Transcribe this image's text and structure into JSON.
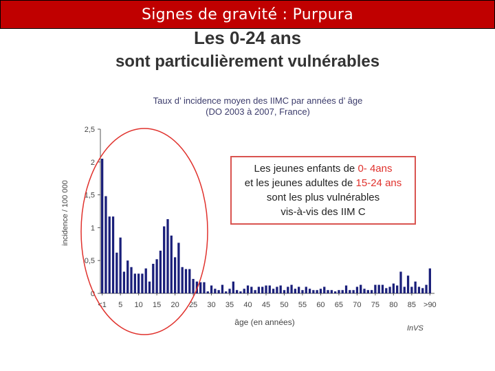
{
  "slide": {
    "title": "Signes de gravité : Purpura",
    "headline_1": "Les 0-24 ans",
    "headline_2": "sont particulièrement vulnérables",
    "chart_title_1": "Taux d’ incidence moyen des IIMC par années d’ âge",
    "chart_title_2": "(DO 2003 à 2007, France)",
    "note": {
      "line1_pre": "Les jeunes enfants de ",
      "line1_red": "0- 4ans",
      "line2_pre": "et les jeunes adultes de ",
      "line2_red": "15-24 ans",
      "line3": "sont les plus vulnérables",
      "line4": "vis-à-vis des IIM C"
    },
    "source": "InVS",
    "colors": {
      "title_bg": "#c00000",
      "bars": "#1a1f7a",
      "highlight": "#e0312c"
    }
  },
  "chart_data": {
    "type": "bar",
    "title": "Taux d’ incidence moyen des IIMC par années d’ âge",
    "subtitle": "(DO 2003 à 2007, France)",
    "xlabel": "âge (en années)",
    "ylabel": "incidence / 100 000",
    "ylim": [
      0,
      2.5
    ],
    "yticks": [
      "0",
      "0,5",
      "1",
      "1,5",
      "2",
      "2,5"
    ],
    "xticks": [
      "<1",
      "5",
      "10",
      "15",
      "20",
      "25",
      "30",
      "35",
      "40",
      "45",
      "50",
      "55",
      "60",
      "65",
      "70",
      "75",
      "80",
      "85",
      ">90"
    ],
    "xtick_positions": [
      0,
      5,
      10,
      15,
      20,
      25,
      30,
      35,
      40,
      45,
      50,
      55,
      60,
      65,
      70,
      75,
      80,
      85,
      90
    ],
    "categories": [
      "<1",
      "1",
      "2",
      "3",
      "4",
      "5",
      "6",
      "7",
      "8",
      "9",
      "10",
      "11",
      "12",
      "13",
      "14",
      "15",
      "16",
      "17",
      "18",
      "19",
      "20",
      "21",
      "22",
      "23",
      "24",
      "25",
      "26",
      "27",
      "28",
      "29",
      "30",
      "31",
      "32",
      "33",
      "34",
      "35",
      "36",
      "37",
      "38",
      "39",
      "40",
      "41",
      "42",
      "43",
      "44",
      "45",
      "46",
      "47",
      "48",
      "49",
      "50",
      "51",
      "52",
      "53",
      "54",
      "55",
      "56",
      "57",
      "58",
      "59",
      "60",
      "61",
      "62",
      "63",
      "64",
      "65",
      "66",
      "67",
      "68",
      "69",
      "70",
      "71",
      "72",
      "73",
      "74",
      "75",
      "76",
      "77",
      "78",
      "79",
      "80",
      "81",
      "82",
      "83",
      "84",
      "85",
      "86",
      "87",
      "88",
      "89",
      ">90"
    ],
    "values": [
      2.05,
      1.48,
      1.17,
      1.17,
      0.62,
      0.85,
      0.33,
      0.5,
      0.4,
      0.3,
      0.3,
      0.3,
      0.38,
      0.18,
      0.45,
      0.52,
      0.65,
      1.02,
      1.13,
      0.88,
      0.55,
      0.77,
      0.4,
      0.37,
      0.37,
      0.22,
      0.18,
      0.17,
      0.17,
      0.03,
      0.12,
      0.07,
      0.05,
      0.13,
      0.03,
      0.07,
      0.18,
      0.05,
      0.03,
      0.07,
      0.12,
      0.1,
      0.05,
      0.1,
      0.1,
      0.12,
      0.12,
      0.07,
      0.1,
      0.12,
      0.05,
      0.1,
      0.13,
      0.07,
      0.1,
      0.05,
      0.1,
      0.07,
      0.05,
      0.05,
      0.07,
      0.1,
      0.05,
      0.05,
      0.03,
      0.05,
      0.05,
      0.12,
      0.05,
      0.05,
      0.1,
      0.13,
      0.07,
      0.05,
      0.05,
      0.13,
      0.13,
      0.13,
      0.08,
      0.1,
      0.15,
      0.12,
      0.33,
      0.1,
      0.27,
      0.1,
      0.18,
      0.1,
      0.08,
      0.13,
      0.38
    ],
    "grid": false,
    "legend": "none",
    "annotation": "Les jeunes enfants de 0- 4ans et les jeunes adultes de 15-24 ans sont les plus vulnérables vis-à-vis des IIM C"
  }
}
